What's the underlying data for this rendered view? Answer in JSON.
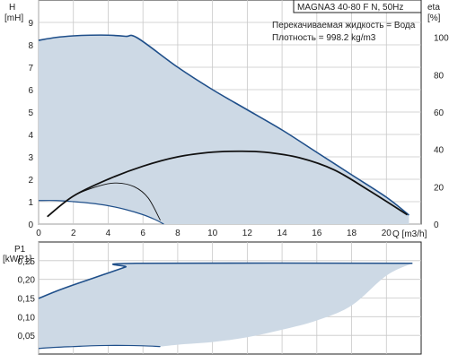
{
  "colors": {
    "envelope_fill": "#cdd9e5",
    "envelope_line": "#1f4f8a",
    "efficiency_line": "#111111",
    "grid": "#c8c8c8",
    "axis": "#222222"
  },
  "chart_data": [
    {
      "type": "area",
      "title": "MAGNA3 40-80 F N, 50Hz",
      "legend_lines": [
        "Перекачиваемая жидкость = Вода",
        "Плотность = 998.2 kg/m3"
      ],
      "xlabel": "Q [m3/h]",
      "ylabel": "H",
      "ylabel_unit": "[mH]",
      "y2label": "eta",
      "y2label_unit": "[%]",
      "xlim": [
        0,
        22
      ],
      "ylim": [
        0,
        10
      ],
      "y2lim": [
        0,
        120
      ],
      "grid": true,
      "x_ticks": [
        0,
        2,
        4,
        6,
        8,
        10,
        12,
        14,
        16,
        18,
        20
      ],
      "y_ticks": [
        0,
        1,
        2,
        3,
        4,
        5,
        6,
        7,
        8,
        9
      ],
      "y2_ticks": [
        0,
        20,
        40,
        60,
        80,
        100
      ],
      "series": [
        {
          "kind": "max_head_envelope",
          "x": [
            0,
            1,
            2,
            3,
            4,
            5,
            5.7,
            8,
            10,
            12,
            14,
            16,
            18,
            20,
            21.3
          ],
          "y": [
            8.2,
            8.33,
            8.4,
            8.43,
            8.43,
            8.38,
            8.3,
            7.0,
            6.0,
            5.1,
            4.2,
            3.2,
            2.2,
            1.2,
            0.4
          ]
        },
        {
          "kind": "min_head_curve",
          "x": [
            0,
            1,
            2,
            3,
            4,
            5,
            6,
            6.7,
            7.2
          ],
          "y": [
            1.05,
            1.05,
            1.0,
            0.93,
            0.82,
            0.65,
            0.42,
            0.2,
            0.0
          ]
        },
        {
          "kind": "max_efficiency",
          "x": [
            0.5,
            2,
            4,
            6,
            8,
            10,
            11.5,
            13,
            15,
            17,
            19,
            21.2
          ],
          "y": [
            4,
            15,
            24,
            31,
            36,
            38.5,
            39,
            38.5,
            35.5,
            29,
            18,
            5
          ]
        },
        {
          "kind": "min_efficiency",
          "x": [
            0.5,
            2,
            3.5,
            4.5,
            5.5,
            6.3,
            7.0
          ],
          "y": [
            4,
            15,
            20.5,
            22,
            20,
            14,
            2
          ]
        }
      ]
    },
    {
      "type": "area",
      "ylabel": "P1",
      "ylabel_unit": "[kWP1]",
      "xlim": [
        0,
        22
      ],
      "ylim": [
        0,
        0.3
      ],
      "grid": true,
      "y_ticks_labels": [
        "0,05",
        "0,10",
        "0,15",
        "0,20",
        "0,25"
      ],
      "y_ticks": [
        0.05,
        0.1,
        0.15,
        0.2,
        0.25
      ],
      "series": [
        {
          "kind": "max_power_upper",
          "x": [
            0,
            1,
            2,
            3,
            4,
            5,
            5.6,
            21.5
          ],
          "y": [
            0.149,
            0.168,
            0.185,
            0.201,
            0.217,
            0.233,
            0.243,
            0.243
          ]
        },
        {
          "kind": "max_power_lower",
          "x": [
            21.5,
            20,
            18,
            16,
            14,
            12,
            10,
            8,
            7
          ],
          "y": [
            0.243,
            0.21,
            0.13,
            0.09,
            0.065,
            0.045,
            0.032,
            0.025,
            0.02
          ]
        },
        {
          "kind": "min_power",
          "x": [
            0,
            1,
            2,
            3,
            4,
            5,
            6,
            7
          ],
          "y": [
            0.015,
            0.018,
            0.02,
            0.022,
            0.023,
            0.023,
            0.022,
            0.02
          ]
        }
      ]
    }
  ]
}
